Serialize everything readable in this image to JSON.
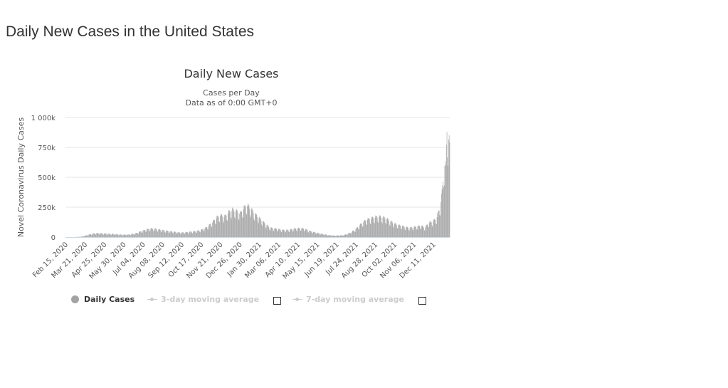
{
  "page": {
    "title": "Daily New Cases in the United States"
  },
  "legend": {
    "daily": "Daily Cases",
    "ma3": "3-day moving average",
    "ma7": "7-day moving average"
  },
  "colors": {
    "bars": "#a3a3a3",
    "grid": "#e6e6e6",
    "disabled": "#cccccc"
  },
  "chart_data": {
    "type": "bar",
    "title": "Daily New Cases",
    "subtitle_lines": [
      "Cases per Day",
      "Data as of 0:00 GMT+0"
    ],
    "ylabel": "Novel Coronavirus Daily Cases",
    "xlabel": "",
    "ylim": [
      0,
      1000000
    ],
    "yticks": [
      {
        "value": 0,
        "label": "0"
      },
      {
        "value": 250000,
        "label": "250k"
      },
      {
        "value": 500000,
        "label": "500k"
      },
      {
        "value": 750000,
        "label": "750k"
      },
      {
        "value": 1000000,
        "label": "1 000k"
      }
    ],
    "x_range": [
      "2020-02-15",
      "2022-01-10"
    ],
    "xtick_labels": [
      "Feb 15, 2020",
      "Mar 21, 2020",
      "Apr 25, 2020",
      "May 30, 2020",
      "Jul 04, 2020",
      "Aug 08, 2020",
      "Sep 12, 2020",
      "Oct 17, 2020",
      "Nov 21, 2020",
      "Dec 26, 2020",
      "Jan 30, 2021",
      "Mar 06, 2021",
      "Apr 10, 2021",
      "May 15, 2021",
      "Jun 19, 2021",
      "Jul 24, 2021",
      "Aug 28, 2021",
      "Oct 02, 2021",
      "Nov 06, 2021",
      "Dec 11, 2021"
    ],
    "grid": true,
    "legend_position": "bottom-left",
    "series": [
      {
        "name": "Daily Cases",
        "x_dates": [
          "2020-02-15",
          "2020-03-01",
          "2020-03-15",
          "2020-03-22",
          "2020-03-29",
          "2020-04-05",
          "2020-04-12",
          "2020-04-19",
          "2020-04-26",
          "2020-05-03",
          "2020-05-10",
          "2020-05-17",
          "2020-05-24",
          "2020-05-31",
          "2020-06-07",
          "2020-06-14",
          "2020-06-21",
          "2020-06-28",
          "2020-07-05",
          "2020-07-12",
          "2020-07-19",
          "2020-07-26",
          "2020-08-02",
          "2020-08-09",
          "2020-08-16",
          "2020-08-23",
          "2020-08-30",
          "2020-09-06",
          "2020-09-13",
          "2020-09-20",
          "2020-09-27",
          "2020-10-04",
          "2020-10-11",
          "2020-10-18",
          "2020-10-25",
          "2020-11-01",
          "2020-11-08",
          "2020-11-15",
          "2020-11-22",
          "2020-11-29",
          "2020-12-06",
          "2020-12-13",
          "2020-12-20",
          "2020-12-27",
          "2021-01-03",
          "2021-01-08",
          "2021-01-15",
          "2021-01-22",
          "2021-01-29",
          "2021-02-05",
          "2021-02-12",
          "2021-02-19",
          "2021-02-26",
          "2021-03-05",
          "2021-03-12",
          "2021-03-19",
          "2021-03-26",
          "2021-04-02",
          "2021-04-09",
          "2021-04-16",
          "2021-04-23",
          "2021-04-30",
          "2021-05-07",
          "2021-05-14",
          "2021-05-21",
          "2021-05-28",
          "2021-06-04",
          "2021-06-11",
          "2021-06-18",
          "2021-06-25",
          "2021-07-02",
          "2021-07-09",
          "2021-07-16",
          "2021-07-23",
          "2021-07-30",
          "2021-08-06",
          "2021-08-13",
          "2021-08-20",
          "2021-08-27",
          "2021-09-03",
          "2021-09-10",
          "2021-09-17",
          "2021-09-24",
          "2021-10-01",
          "2021-10-08",
          "2021-10-15",
          "2021-10-22",
          "2021-10-29",
          "2021-11-05",
          "2021-11-12",
          "2021-11-19",
          "2021-11-26",
          "2021-12-03",
          "2021-12-10",
          "2021-12-17",
          "2021-12-24",
          "2021-12-28",
          "2021-12-31",
          "2022-01-03",
          "2022-01-05",
          "2022-01-08",
          "2022-01-10"
        ],
        "values": [
          0,
          100,
          3000,
          12000,
          20000,
          28000,
          31000,
          30000,
          28000,
          26000,
          25000,
          22000,
          20000,
          19000,
          20000,
          23000,
          30000,
          42000,
          52000,
          63000,
          68000,
          66000,
          60000,
          55000,
          50000,
          45000,
          42000,
          37000,
          36000,
          38000,
          42000,
          45000,
          50000,
          58000,
          72000,
          95000,
          125000,
          160000,
          175000,
          165000,
          200000,
          220000,
          210000,
          190000,
          235000,
          260000,
          230000,
          190000,
          160000,
          130000,
          100000,
          75000,
          70000,
          65000,
          58000,
          55000,
          58000,
          65000,
          70000,
          72000,
          65000,
          52000,
          42000,
          35000,
          28000,
          22000,
          16000,
          13000,
          12000,
          13000,
          16000,
          25000,
          40000,
          60000,
          90000,
          120000,
          140000,
          150000,
          160000,
          165000,
          160000,
          150000,
          130000,
          110000,
          98000,
          90000,
          80000,
          75000,
          78000,
          85000,
          92000,
          75000,
          115000,
          125000,
          150000,
          250000,
          400000,
          600000,
          550000,
          880000,
          800000,
          720000
        ]
      }
    ]
  }
}
